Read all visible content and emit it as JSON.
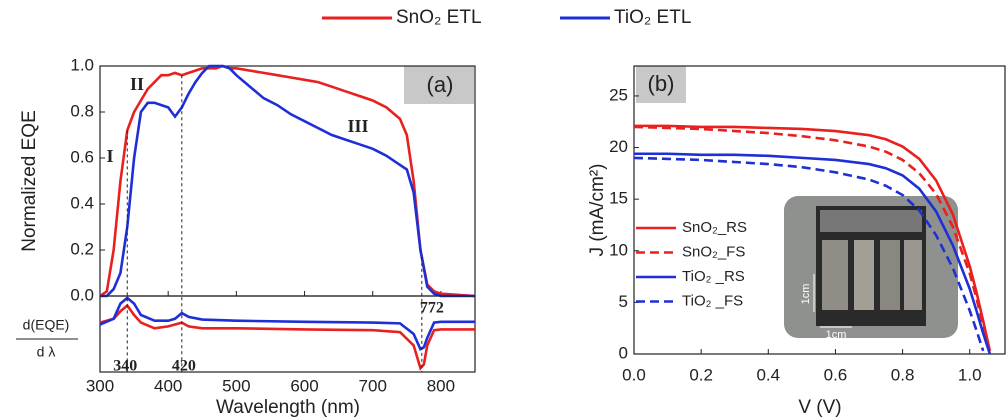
{
  "chart_data": [
    {
      "type": "line",
      "panel_label": "(a)",
      "ylabel": "Normalized EQE",
      "xlabel": "Wavelength (nm)",
      "x": [
        300,
        310,
        320,
        330,
        340,
        350,
        360,
        370,
        380,
        390,
        400,
        410,
        420,
        430,
        440,
        450,
        460,
        470,
        480,
        490,
        500,
        520,
        540,
        560,
        580,
        600,
        620,
        640,
        660,
        680,
        700,
        720,
        740,
        750,
        760,
        770,
        780,
        790,
        800,
        850
      ],
      "series": [
        {
          "name": "SnO₂ ETL",
          "color": "#e8201e",
          "values": [
            0.0,
            0.02,
            0.2,
            0.5,
            0.72,
            0.8,
            0.85,
            0.9,
            0.93,
            0.96,
            0.96,
            0.97,
            0.96,
            0.97,
            0.98,
            0.99,
            0.99,
            0.99,
            1.0,
            0.99,
            0.99,
            0.98,
            0.97,
            0.96,
            0.95,
            0.94,
            0.93,
            0.91,
            0.89,
            0.87,
            0.85,
            0.82,
            0.77,
            0.7,
            0.5,
            0.2,
            0.05,
            0.02,
            0.01,
            0.0
          ]
        },
        {
          "name": "TiO₂ ETL",
          "color": "#1f2fd6",
          "values": [
            0.0,
            0.0,
            0.03,
            0.1,
            0.3,
            0.6,
            0.8,
            0.84,
            0.84,
            0.83,
            0.82,
            0.78,
            0.82,
            0.88,
            0.93,
            0.97,
            1.0,
            1.0,
            1.0,
            0.99,
            0.96,
            0.91,
            0.86,
            0.83,
            0.79,
            0.76,
            0.73,
            0.7,
            0.68,
            0.66,
            0.64,
            0.61,
            0.57,
            0.55,
            0.45,
            0.2,
            0.04,
            0.01,
            0.0,
            0.0
          ]
        }
      ],
      "xlim": [
        300,
        850
      ],
      "xticks": [
        300,
        400,
        500,
        600,
        700,
        800
      ],
      "ylim": [
        0,
        1
      ],
      "yticks": [
        {
          "value": 0,
          "label": "0.0"
        },
        {
          "value": 0.2,
          "label": "0.2"
        },
        {
          "value": 0.4,
          "label": "0.4"
        },
        {
          "value": 0.6,
          "label": "0.6"
        },
        {
          "value": 0.8,
          "label": "0.8"
        },
        {
          "value": 1,
          "label": "1.0"
        }
      ],
      "annotations": [
        "I",
        "II",
        "III"
      ],
      "vlines": [
        340,
        420,
        772
      ]
    },
    {
      "type": "line",
      "ylabel_top": "d(EQE)",
      "ylabel_bottom": "d λ",
      "x": [
        300,
        320,
        330,
        340,
        350,
        360,
        380,
        400,
        410,
        420,
        430,
        450,
        500,
        600,
        700,
        740,
        760,
        770,
        775,
        780,
        790,
        800,
        850
      ],
      "series": [
        {
          "color": "#e8201e",
          "values": [
            0.3,
            0.4,
            0.6,
            0.75,
            0.5,
            0.3,
            0.15,
            0.2,
            0.25,
            0.3,
            0.2,
            0.15,
            0.15,
            0.12,
            0.1,
            0.05,
            -0.3,
            -0.9,
            -0.8,
            -0.3,
            0.1,
            0.12,
            0.12
          ]
        },
        {
          "color": "#1f2fd6",
          "values": [
            0.25,
            0.4,
            0.8,
            0.95,
            0.8,
            0.5,
            0.35,
            0.35,
            0.4,
            0.55,
            0.45,
            0.38,
            0.35,
            0.32,
            0.3,
            0.28,
            0.0,
            -0.4,
            -0.35,
            -0.1,
            0.3,
            0.32,
            0.32
          ]
        }
      ],
      "xlim": [
        300,
        850
      ],
      "ylim": [
        -1,
        1
      ]
    },
    {
      "type": "line",
      "panel_label": "(b)",
      "ylabel": "J (mA/cm²)",
      "xlabel": "V (V)",
      "x": [
        0,
        0.1,
        0.2,
        0.3,
        0.4,
        0.5,
        0.6,
        0.7,
        0.75,
        0.8,
        0.85,
        0.9,
        0.95,
        1.0,
        1.02,
        1.04,
        1.06
      ],
      "series": [
        {
          "name": "SnO₂_RS",
          "color": "#e8201e",
          "style": "solid",
          "values": [
            22.1,
            22.1,
            22.0,
            22.0,
            21.9,
            21.8,
            21.6,
            21.2,
            20.8,
            20.1,
            18.9,
            16.8,
            13.5,
            8.5,
            6.0,
            3.2,
            0.3
          ]
        },
        {
          "name": "SnO₂_FS",
          "color": "#e8201e",
          "style": "dashed",
          "values": [
            22.0,
            21.9,
            21.8,
            21.6,
            21.4,
            21.1,
            20.7,
            20.1,
            19.6,
            18.8,
            17.5,
            15.5,
            12.3,
            7.8,
            5.4,
            2.7,
            0.0
          ]
        },
        {
          "name": "TiO₂ _RS",
          "color": "#1f2fd6",
          "style": "solid",
          "values": [
            19.4,
            19.4,
            19.3,
            19.3,
            19.2,
            19.0,
            18.8,
            18.4,
            18.0,
            17.3,
            16.0,
            13.8,
            10.5,
            6.3,
            4.2,
            2.0,
            0.0
          ]
        },
        {
          "name": "TiO₂ _FS",
          "color": "#1f2fd6",
          "style": "dashed",
          "values": [
            19.0,
            18.9,
            18.8,
            18.6,
            18.4,
            18.1,
            17.6,
            16.9,
            16.3,
            15.4,
            13.9,
            11.5,
            8.3,
            4.2,
            2.3,
            0.3,
            null
          ]
        }
      ],
      "xlim": [
        0,
        1.105
      ],
      "xticks": [
        {
          "value": 0,
          "label": "0.0"
        },
        {
          "value": 0.2,
          "label": "0.2"
        },
        {
          "value": 0.4,
          "label": "0.4"
        },
        {
          "value": 0.6,
          "label": "0.6"
        },
        {
          "value": 0.8,
          "label": "0.8"
        },
        {
          "value": 1,
          "label": "1.0"
        }
      ],
      "ylim": [
        0,
        27.9
      ],
      "yticks": [
        0,
        5,
        10,
        15,
        20,
        25
      ],
      "inset_labels": [
        "1cm",
        "1cm"
      ]
    }
  ]
}
